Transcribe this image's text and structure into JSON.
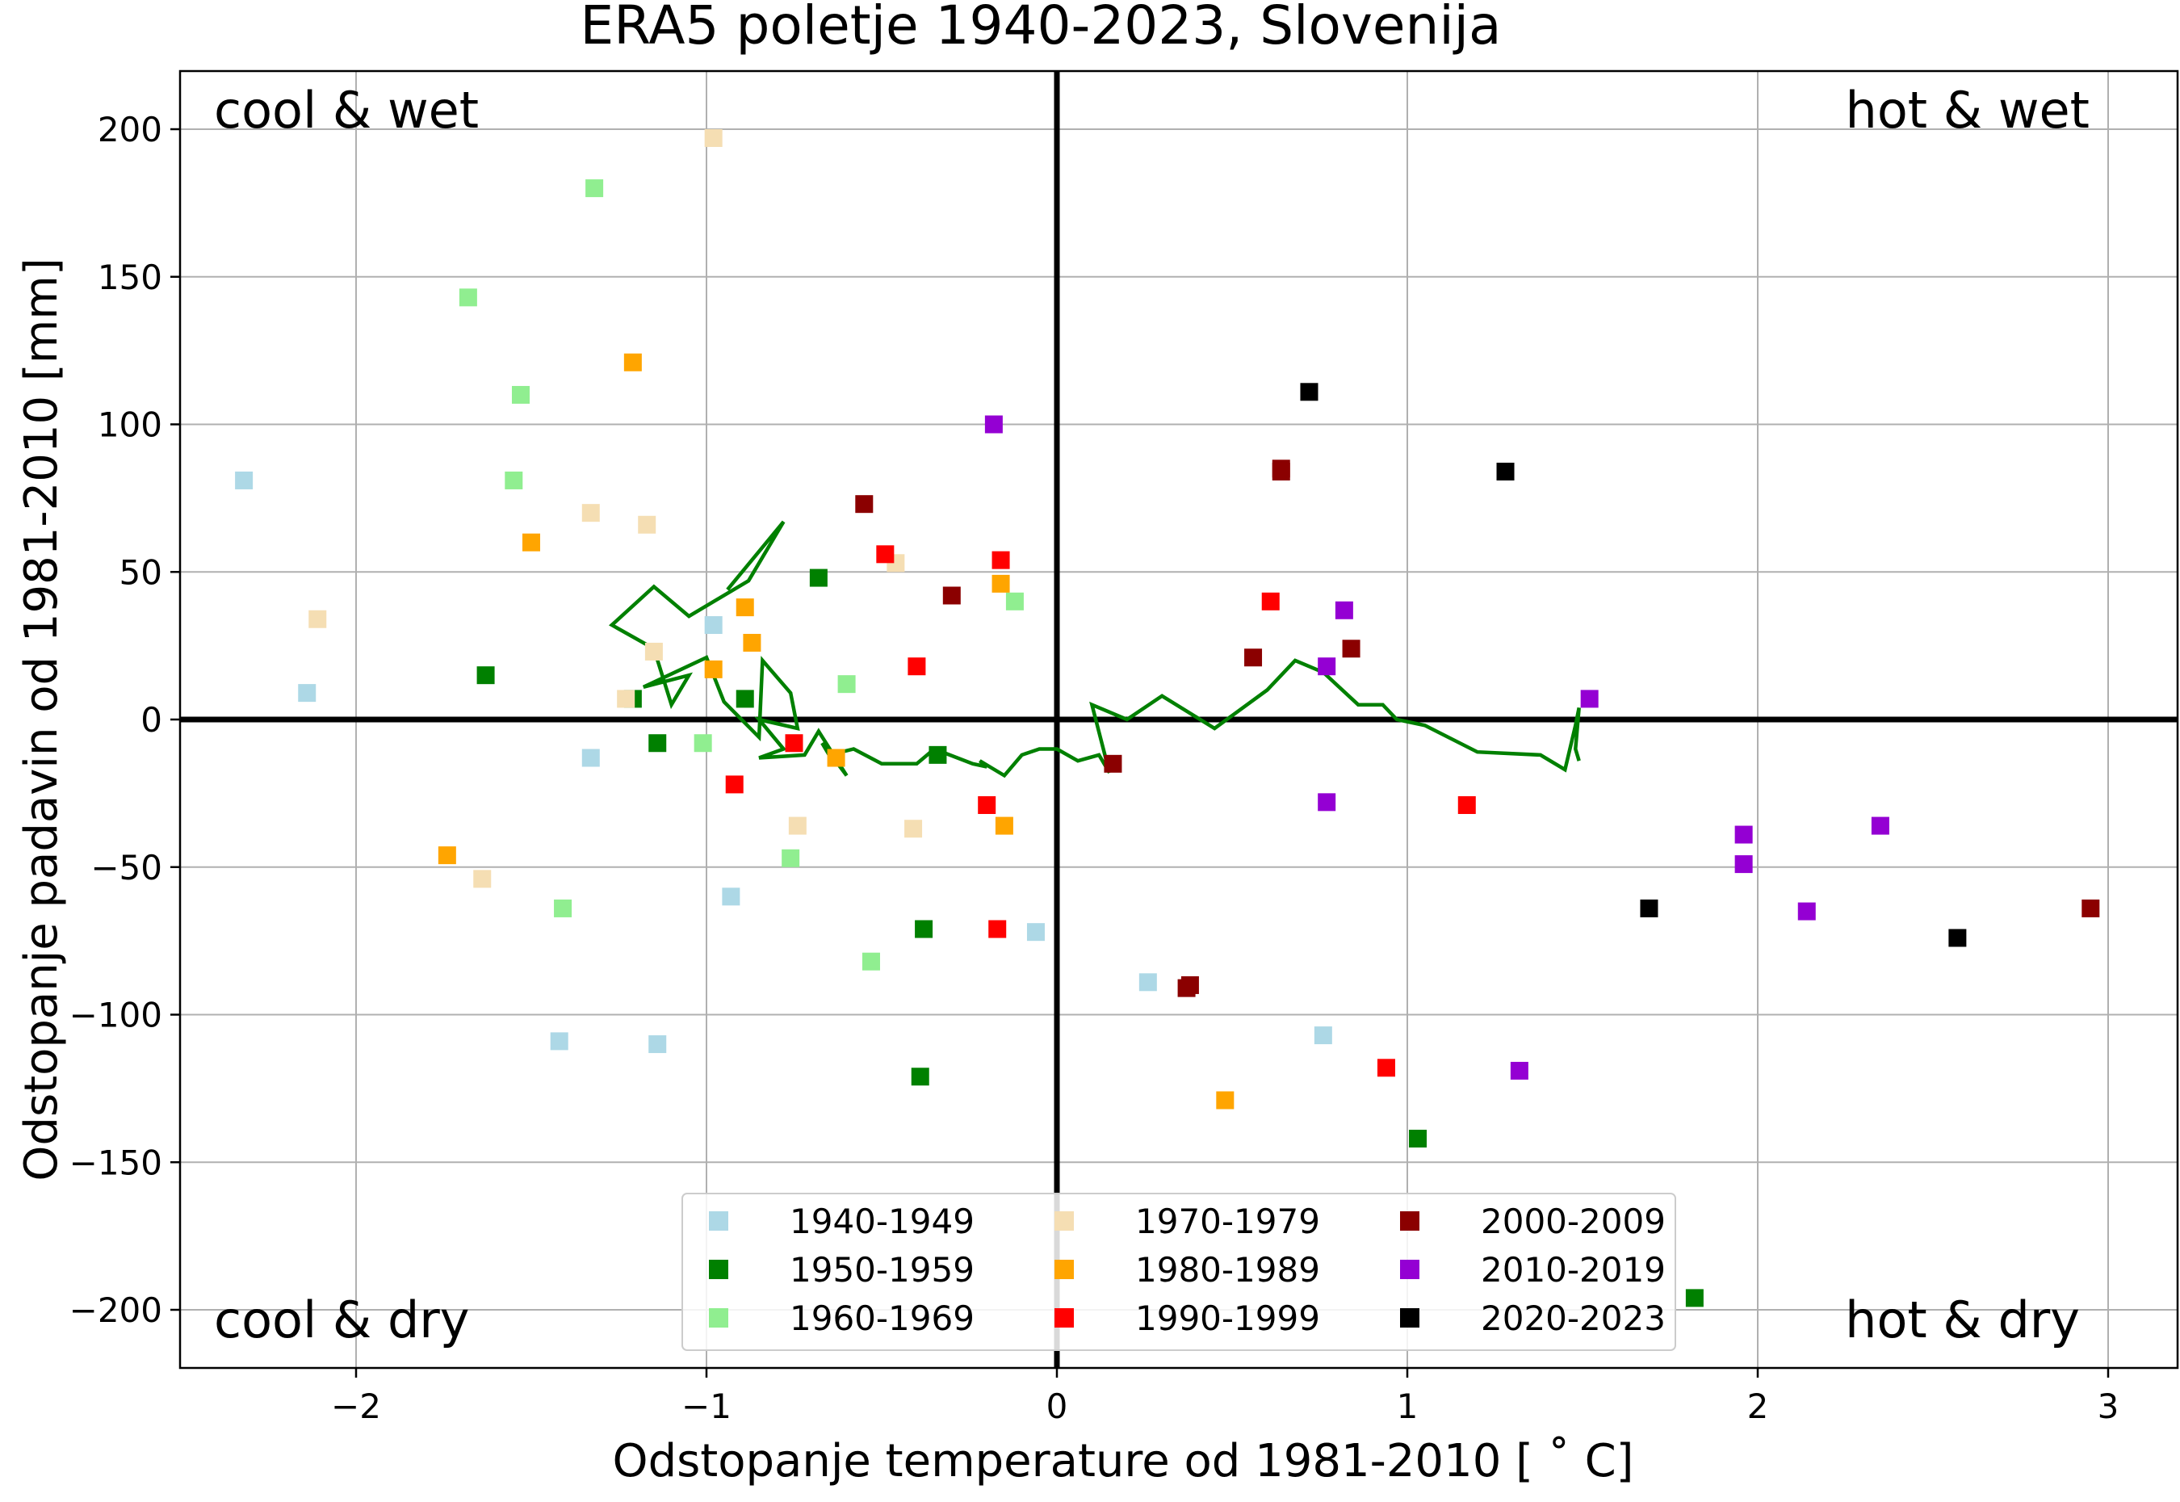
{
  "chart_data": {
    "type": "scatter",
    "title": "ERA5 poletje 1940-2023, Slovenija",
    "xlabel": "Odstopanje temperature od 1981-2010 [$^\\circ$C]",
    "xlabel_display": "Odstopanje temperature od 1981-2010 [ ˚ C]",
    "ylabel": "Odstopanje padavin od 1981-2010 [mm]",
    "xlim": [
      -2.5,
      3.2
    ],
    "ylim": [
      -220,
      218
    ],
    "xticks": [
      -2,
      -1,
      0,
      1,
      2,
      3
    ],
    "xtick_labels": [
      "−2",
      "−1",
      "0",
      "1",
      "2",
      "3"
    ],
    "yticks": [
      200,
      150,
      100,
      50,
      0,
      -50,
      -100,
      -150,
      -200
    ],
    "ytick_labels": [
      "200",
      "150",
      "100",
      "50",
      "0",
      "−50",
      "−100",
      "−150",
      "−200"
    ],
    "grid": true,
    "legend_placement": "lower-center",
    "quadrant_labels": {
      "top_left": "cool & wet",
      "top_right": "hot & wet",
      "bottom_left": "cool & dry",
      "bottom_right": "hot & dry"
    },
    "series": [
      {
        "name": "1940-1949",
        "color": "#add8e6",
        "marker": "square",
        "points": [
          [
            -2.32,
            81
          ],
          [
            -2.14,
            9
          ],
          [
            -0.98,
            32
          ],
          [
            -1.33,
            -13
          ],
          [
            -0.93,
            -60
          ],
          [
            -0.06,
            -72
          ],
          [
            -1.42,
            -109
          ],
          [
            -1.14,
            -110
          ],
          [
            0.26,
            -89
          ],
          [
            0.76,
            -107
          ]
        ]
      },
      {
        "name": "1950-1959",
        "color": "#008000",
        "marker": "square",
        "points": [
          [
            -1.63,
            15
          ],
          [
            -1.21,
            7
          ],
          [
            -1.14,
            -8
          ],
          [
            -0.89,
            7
          ],
          [
            -0.68,
            48
          ],
          [
            -0.34,
            -12
          ],
          [
            -0.38,
            -71
          ],
          [
            -0.39,
            -121
          ],
          [
            1.03,
            -142
          ],
          [
            1.82,
            -196
          ]
        ]
      },
      {
        "name": "1960-1969",
        "color": "#90ee90",
        "marker": "square",
        "points": [
          [
            -1.32,
            180
          ],
          [
            -1.68,
            143
          ],
          [
            -1.53,
            110
          ],
          [
            -1.55,
            81
          ],
          [
            -1.01,
            -8
          ],
          [
            -0.6,
            12
          ],
          [
            -0.76,
            -47
          ],
          [
            -1.41,
            -64
          ],
          [
            -0.53,
            -82
          ],
          [
            -0.12,
            40
          ]
        ]
      },
      {
        "name": "1970-1979",
        "color": "#f5deb3",
        "marker": "square",
        "points": [
          [
            -0.98,
            197
          ],
          [
            -2.11,
            34
          ],
          [
            -1.33,
            70
          ],
          [
            -1.17,
            66
          ],
          [
            -1.15,
            23
          ],
          [
            -1.23,
            7
          ],
          [
            -0.46,
            53
          ],
          [
            -0.41,
            -37
          ],
          [
            -0.74,
            -36
          ],
          [
            -1.64,
            -54
          ]
        ]
      },
      {
        "name": "1980-1989",
        "color": "#ffa500",
        "marker": "square",
        "points": [
          [
            -1.21,
            121
          ],
          [
            -1.5,
            60
          ],
          [
            -0.89,
            38
          ],
          [
            -0.87,
            26
          ],
          [
            -0.98,
            17
          ],
          [
            -0.63,
            -13
          ],
          [
            -0.16,
            46
          ],
          [
            -0.15,
            -36
          ],
          [
            -1.74,
            -46
          ],
          [
            0.48,
            -129
          ]
        ]
      },
      {
        "name": "1990-1999",
        "color": "#ff0000",
        "marker": "square",
        "points": [
          [
            -0.49,
            56
          ],
          [
            -0.16,
            54
          ],
          [
            -0.4,
            18
          ],
          [
            -0.75,
            -8
          ],
          [
            -0.92,
            -22
          ],
          [
            -0.2,
            -29
          ],
          [
            -0.17,
            -71
          ],
          [
            0.61,
            40
          ],
          [
            1.17,
            -29
          ],
          [
            0.94,
            -118
          ]
        ]
      },
      {
        "name": "2000-2009",
        "color": "#8b0000",
        "marker": "square",
        "points": [
          [
            -0.55,
            73
          ],
          [
            -0.3,
            42
          ],
          [
            0.64,
            85
          ],
          [
            0.64,
            84
          ],
          [
            0.56,
            21
          ],
          [
            0.84,
            24
          ],
          [
            0.16,
            -15
          ],
          [
            0.38,
            -90
          ],
          [
            0.37,
            -91
          ],
          [
            2.95,
            -64
          ]
        ]
      },
      {
        "name": "2010-2019",
        "color": "#9400d3",
        "marker": "square",
        "points": [
          [
            -0.18,
            100
          ],
          [
            0.82,
            37
          ],
          [
            0.77,
            18
          ],
          [
            1.52,
            7
          ],
          [
            0.77,
            -28
          ],
          [
            1.96,
            -39
          ],
          [
            1.96,
            -49
          ],
          [
            2.14,
            -65
          ],
          [
            2.35,
            -36
          ],
          [
            1.32,
            -119
          ]
        ]
      },
      {
        "name": "2020-2023",
        "color": "#000000",
        "marker": "square",
        "points": [
          [
            0.72,
            111
          ],
          [
            1.28,
            84
          ],
          [
            1.69,
            -64
          ],
          [
            2.57,
            -74
          ]
        ]
      }
    ],
    "trend_line": {
      "color": "#008000",
      "points": [
        [
          -0.94,
          44
        ],
        [
          -0.78,
          67
        ],
        [
          -0.88,
          47
        ],
        [
          -1.05,
          35
        ],
        [
          -1.15,
          45
        ],
        [
          -1.27,
          32
        ],
        [
          -1.15,
          24
        ],
        [
          -1.1,
          5
        ],
        [
          -1.05,
          15
        ],
        [
          -1.18,
          11
        ],
        [
          -1.0,
          21
        ],
        [
          -0.95,
          6
        ],
        [
          -0.85,
          -6
        ],
        [
          -0.84,
          20
        ],
        [
          -0.76,
          9
        ],
        [
          -0.74,
          -3
        ],
        [
          -0.85,
          0
        ],
        [
          -0.78,
          -10
        ],
        [
          -0.85,
          -13
        ],
        [
          -0.72,
          -12
        ],
        [
          -0.68,
          -4
        ],
        [
          -0.6,
          -19
        ],
        [
          -0.67,
          -8
        ],
        [
          -0.65,
          -12
        ],
        [
          -0.58,
          -10
        ],
        [
          -0.5,
          -15
        ],
        [
          -0.4,
          -15
        ],
        [
          -0.35,
          -10
        ],
        [
          -0.24,
          -15
        ],
        [
          -0.2,
          -16
        ],
        [
          -0.22,
          -14
        ],
        [
          -0.15,
          -19
        ],
        [
          -0.1,
          -12
        ],
        [
          -0.05,
          -10
        ],
        [
          0.0,
          -10
        ],
        [
          0.06,
          -14
        ],
        [
          0.12,
          -12
        ],
        [
          0.15,
          -18
        ],
        [
          0.1,
          5
        ],
        [
          0.2,
          0
        ],
        [
          0.3,
          8
        ],
        [
          0.45,
          -3
        ],
        [
          0.6,
          10
        ],
        [
          0.68,
          20
        ],
        [
          0.76,
          16
        ],
        [
          0.86,
          5
        ],
        [
          0.93,
          5
        ],
        [
          0.97,
          0
        ],
        [
          1.05,
          -2
        ],
        [
          1.2,
          -11
        ],
        [
          1.38,
          -12
        ],
        [
          1.45,
          -17
        ],
        [
          1.48,
          -2
        ],
        [
          1.49,
          4
        ],
        [
          1.48,
          -10
        ],
        [
          1.49,
          -14
        ]
      ]
    }
  }
}
